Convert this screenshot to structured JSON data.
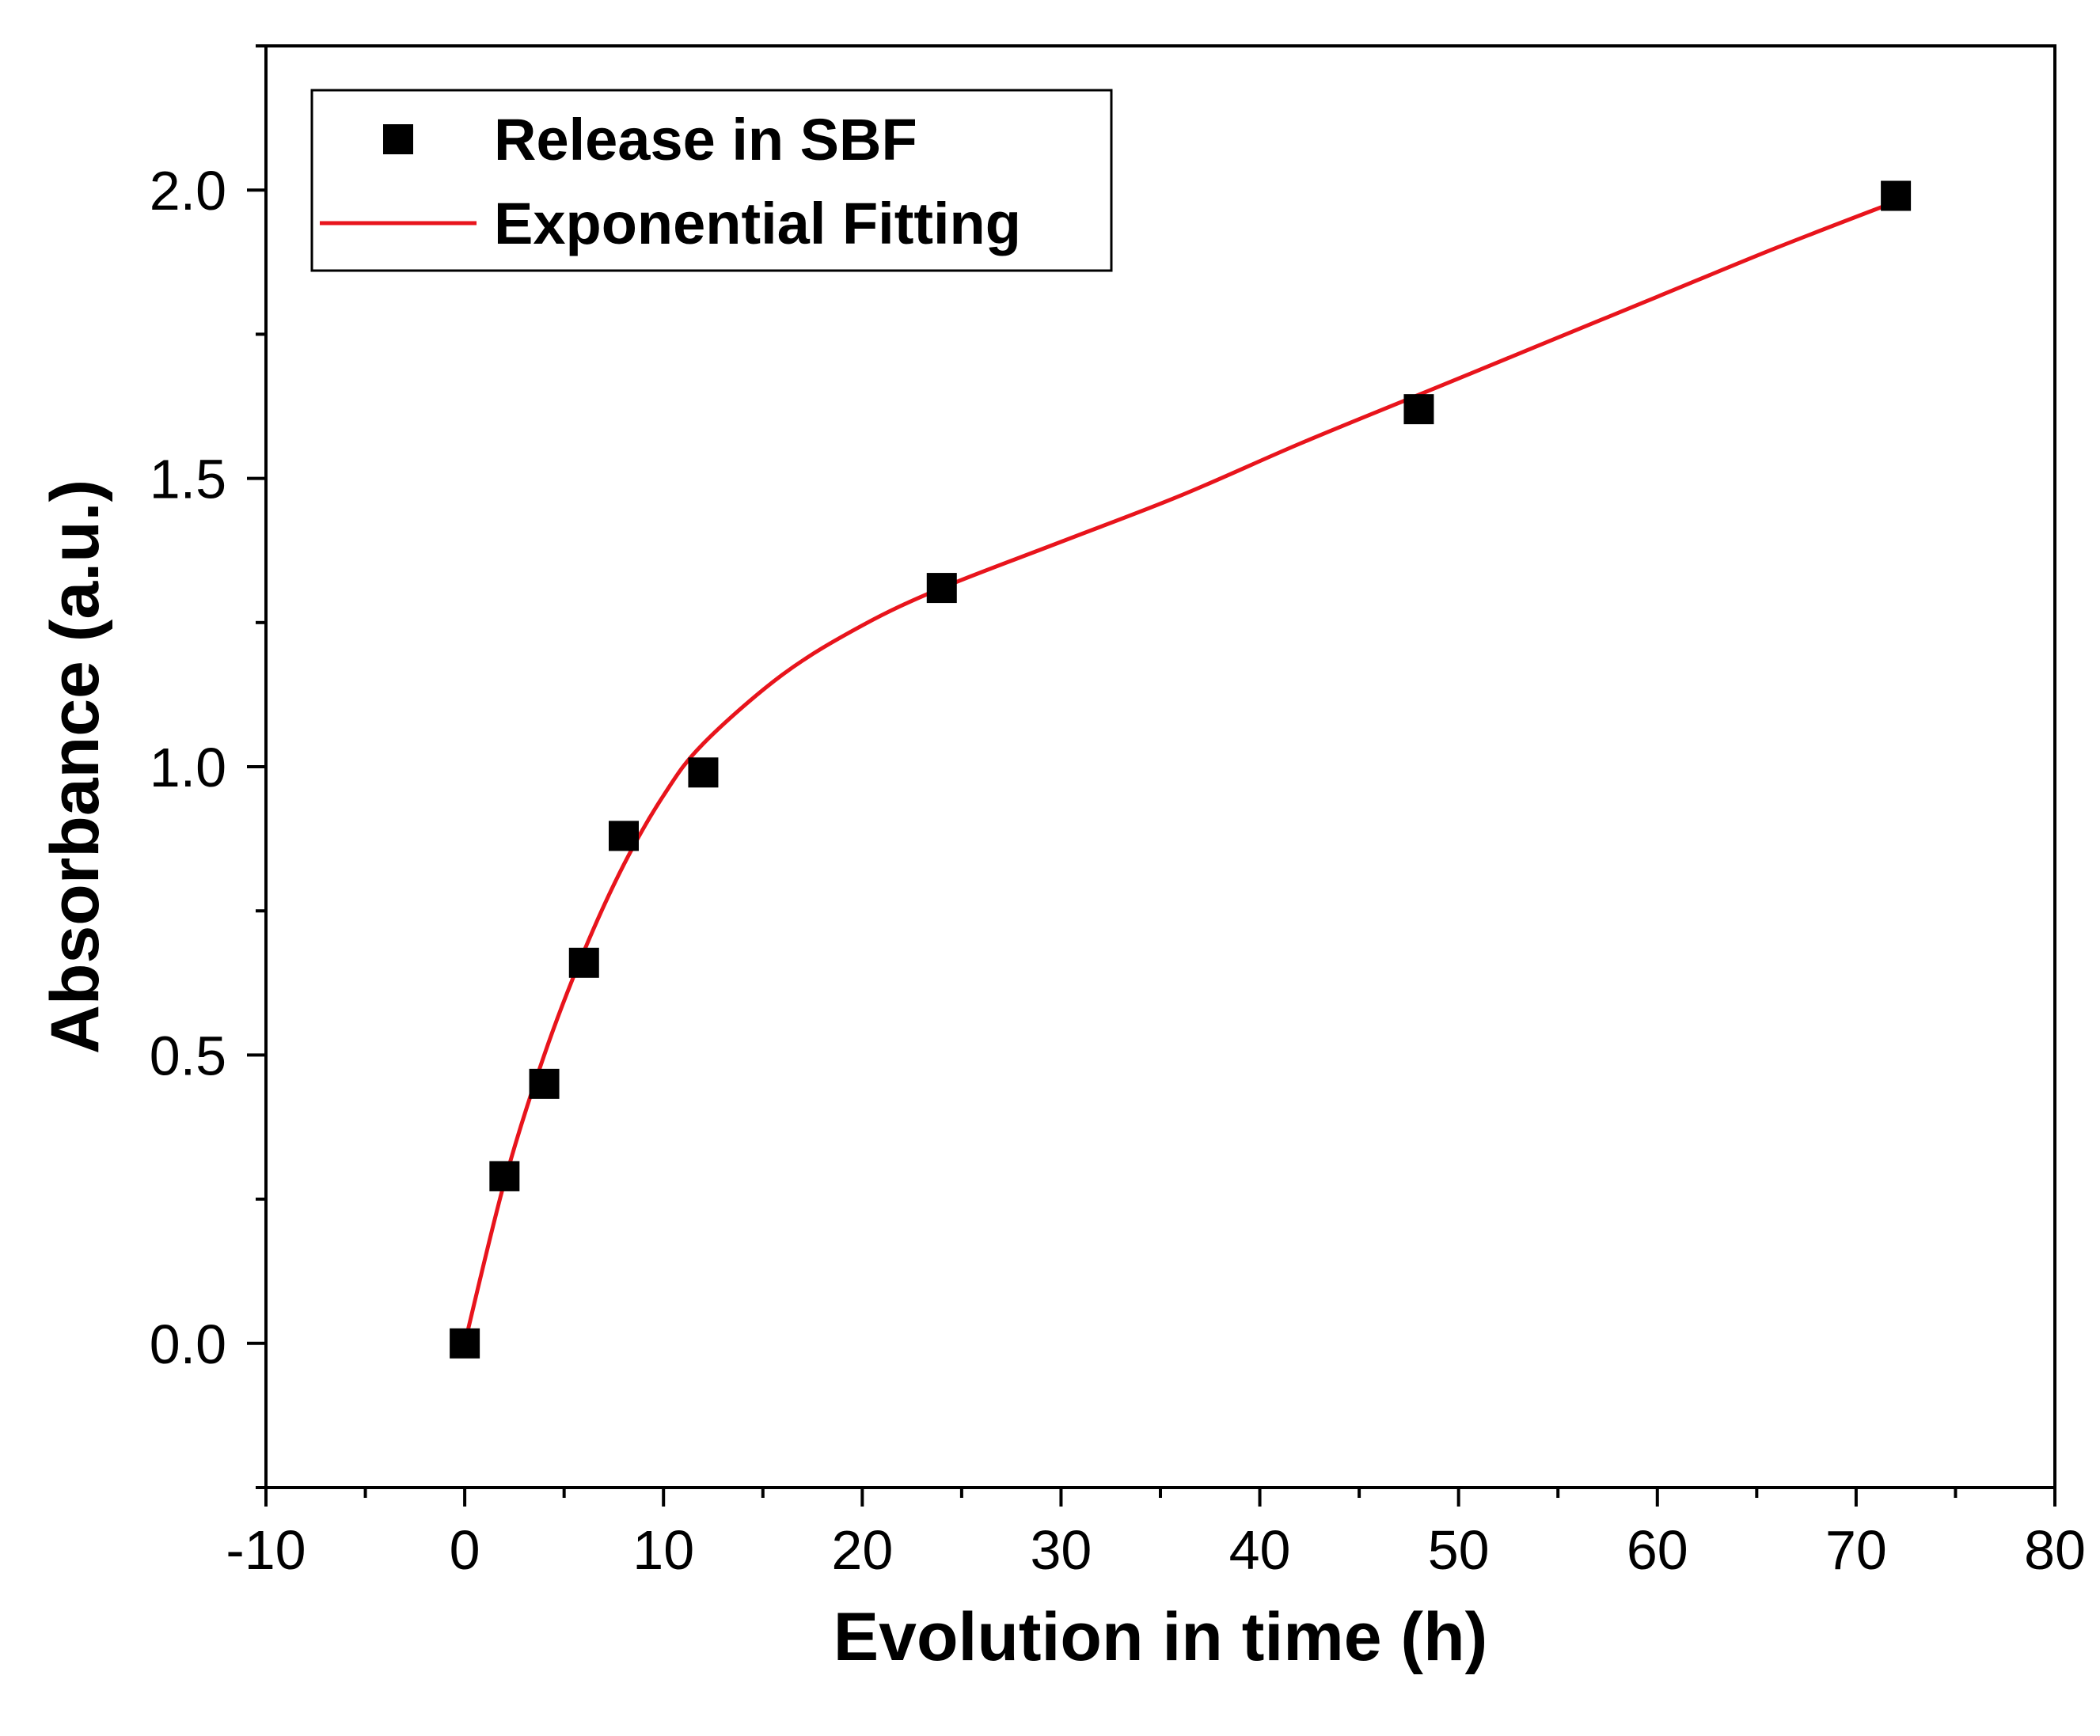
{
  "chart_data": {
    "type": "scatter",
    "title": "",
    "xlabel": "Evolution in time (h)",
    "ylabel": "Absorbance (a.u.)",
    "xlim": [
      -10,
      80
    ],
    "ylim": [
      -0.25,
      2.25
    ],
    "xticks": [
      -10,
      0,
      10,
      20,
      30,
      40,
      50,
      60,
      70,
      80
    ],
    "xtick_labels": [
      "-10",
      "0",
      "10",
      "20",
      "30",
      "40",
      "50",
      "60",
      "70",
      "80"
    ],
    "yticks": [
      0.0,
      0.5,
      1.0,
      1.5,
      2.0
    ],
    "ytick_labels": [
      "0.0",
      "0.5",
      "1.0",
      "1.5",
      "2.0"
    ],
    "grid": false,
    "legend_position": "top-left",
    "series": [
      {
        "name": "Release in SBF",
        "kind": "scatter",
        "marker": "square",
        "color": "#000000",
        "x": [
          0,
          2,
          4,
          6,
          8,
          12,
          24,
          48,
          72
        ],
        "y": [
          0.0,
          0.29,
          0.45,
          0.66,
          0.88,
          0.99,
          1.31,
          1.62,
          1.99
        ]
      },
      {
        "name": "Exponential Fitting",
        "kind": "line",
        "color": "#e8141c",
        "x": [
          0,
          2,
          4,
          6,
          8,
          10,
          12,
          16,
          20,
          24,
          30,
          36,
          42,
          48,
          54,
          60,
          66,
          72
        ],
        "y": [
          0.0,
          0.28,
          0.5,
          0.68,
          0.83,
          0.95,
          1.04,
          1.16,
          1.245,
          1.31,
          1.39,
          1.47,
          1.56,
          1.645,
          1.73,
          1.815,
          1.9,
          1.98
        ]
      }
    ]
  }
}
